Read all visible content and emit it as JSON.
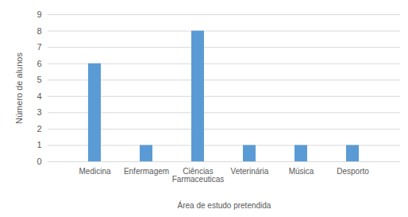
{
  "chart_data": {
    "type": "bar",
    "categories": [
      "Medicina",
      "Enfermagem",
      "Ciências Farmaceuticas",
      "Veterinária",
      "Música",
      "Desporto"
    ],
    "values": [
      6,
      1,
      8,
      1,
      1,
      1
    ],
    "color": "#5b9bd5",
    "x_label": "Área de estudo pretendida",
    "y_label": "Número de alunos",
    "ylim": [
      0,
      9
    ],
    "yticks": [
      0,
      1,
      2,
      3,
      4,
      5,
      6,
      7,
      8,
      9
    ],
    "grid": true
  }
}
